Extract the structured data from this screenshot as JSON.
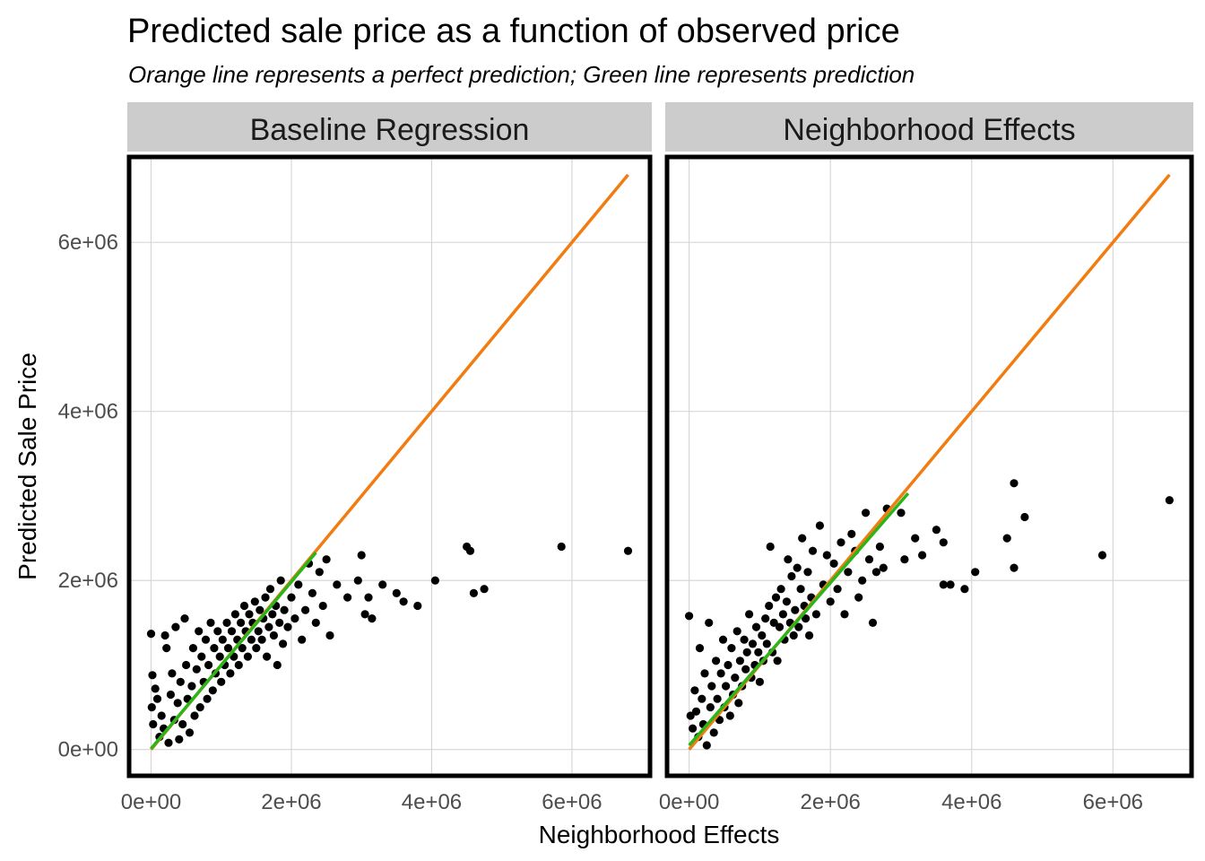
{
  "chart_data": {
    "type": "scatter",
    "title": "Predicted sale price as a function of observed price",
    "subtitle": "Orange line represents a perfect prediction; Green line represents prediction",
    "xlabel": "Neighborhood Effects",
    "ylabel": "Predicted Sale Price",
    "xlim": [
      -300000,
      7100000
    ],
    "ylim": [
      -300000,
      7000000
    ],
    "x_ticks": [
      0,
      2000000,
      4000000,
      6000000
    ],
    "x_tick_labels": [
      "0e+00",
      "2e+06",
      "4e+06",
      "6e+06"
    ],
    "y_ticks": [
      0,
      2000000,
      4000000,
      6000000
    ],
    "y_tick_labels": [
      "0e+00",
      "2e+06",
      "4e+06",
      "6e+06"
    ],
    "grid": true,
    "colors": {
      "points": "#000000",
      "perfect_line": "#f07c12",
      "prediction_line": "#2bb51a",
      "strip": "#cccccc"
    },
    "panels": [
      {
        "name": "Baseline Regression",
        "perfect_line": [
          [
            0,
            0
          ],
          [
            6800000,
            6800000
          ]
        ],
        "prediction_line": [
          [
            0,
            10000
          ],
          [
            2350000,
            2330000
          ]
        ],
        "points": [
          [
            0,
            1370000
          ],
          [
            20000,
            880000
          ],
          [
            10000,
            500000
          ],
          [
            30000,
            300000
          ],
          [
            60000,
            720000
          ],
          [
            90000,
            600000
          ],
          [
            120000,
            150000
          ],
          [
            150000,
            400000
          ],
          [
            180000,
            250000
          ],
          [
            200000,
            1350000
          ],
          [
            220000,
            1200000
          ],
          [
            250000,
            80000
          ],
          [
            280000,
            650000
          ],
          [
            300000,
            900000
          ],
          [
            330000,
            350000
          ],
          [
            350000,
            1450000
          ],
          [
            380000,
            550000
          ],
          [
            400000,
            120000
          ],
          [
            420000,
            800000
          ],
          [
            450000,
            300000
          ],
          [
            480000,
            1550000
          ],
          [
            500000,
            1000000
          ],
          [
            520000,
            600000
          ],
          [
            550000,
            200000
          ],
          [
            580000,
            750000
          ],
          [
            600000,
            1200000
          ],
          [
            620000,
            400000
          ],
          [
            650000,
            950000
          ],
          [
            680000,
            1400000
          ],
          [
            700000,
            500000
          ],
          [
            720000,
            1100000
          ],
          [
            750000,
            800000
          ],
          [
            780000,
            1300000
          ],
          [
            800000,
            600000
          ],
          [
            820000,
            1000000
          ],
          [
            850000,
            1500000
          ],
          [
            880000,
            700000
          ],
          [
            900000,
            1200000
          ],
          [
            920000,
            900000
          ],
          [
            950000,
            1400000
          ],
          [
            980000,
            1100000
          ],
          [
            1000000,
            800000
          ],
          [
            1020000,
            1300000
          ],
          [
            1050000,
            1000000
          ],
          [
            1080000,
            1500000
          ],
          [
            1100000,
            1200000
          ],
          [
            1130000,
            900000
          ],
          [
            1150000,
            1400000
          ],
          [
            1180000,
            1100000
          ],
          [
            1200000,
            1600000
          ],
          [
            1230000,
            1300000
          ],
          [
            1250000,
            1000000
          ],
          [
            1280000,
            1500000
          ],
          [
            1300000,
            1200000
          ],
          [
            1330000,
            1700000
          ],
          [
            1350000,
            1400000
          ],
          [
            1380000,
            1100000
          ],
          [
            1400000,
            1600000
          ],
          [
            1430000,
            1300000
          ],
          [
            1450000,
            1500000
          ],
          [
            1480000,
            1750000
          ],
          [
            1500000,
            1200000
          ],
          [
            1530000,
            1400000
          ],
          [
            1550000,
            1650000
          ],
          [
            1580000,
            1300000
          ],
          [
            1600000,
            1550000
          ],
          [
            1630000,
            1800000
          ],
          [
            1650000,
            1100000
          ],
          [
            1680000,
            1450000
          ],
          [
            1700000,
            1900000
          ],
          [
            1730000,
            1600000
          ],
          [
            1750000,
            1350000
          ],
          [
            1780000,
            1700000
          ],
          [
            1800000,
            1000000
          ],
          [
            1830000,
            1500000
          ],
          [
            1850000,
            2000000
          ],
          [
            1880000,
            1250000
          ],
          [
            1900000,
            1650000
          ],
          [
            1950000,
            1450000
          ],
          [
            2000000,
            1800000
          ],
          [
            2050000,
            1550000
          ],
          [
            2100000,
            1950000
          ],
          [
            2150000,
            1300000
          ],
          [
            2200000,
            1650000
          ],
          [
            2250000,
            2200000
          ],
          [
            2300000,
            1850000
          ],
          [
            2350000,
            1500000
          ],
          [
            2400000,
            2100000
          ],
          [
            2450000,
            1700000
          ],
          [
            2500000,
            2250000
          ],
          [
            2550000,
            1350000
          ],
          [
            2650000,
            1950000
          ],
          [
            2800000,
            1800000
          ],
          [
            2950000,
            2000000
          ],
          [
            3000000,
            2300000
          ],
          [
            3050000,
            1600000
          ],
          [
            3100000,
            1800000
          ],
          [
            3150000,
            1550000
          ],
          [
            3300000,
            1950000
          ],
          [
            3500000,
            1850000
          ],
          [
            3600000,
            1750000
          ],
          [
            3800000,
            1700000
          ],
          [
            4050000,
            2000000
          ],
          [
            4500000,
            2400000
          ],
          [
            4550000,
            2350000
          ],
          [
            4600000,
            1850000
          ],
          [
            4750000,
            1900000
          ],
          [
            5850000,
            2400000
          ],
          [
            6800000,
            2350000
          ]
        ]
      },
      {
        "name": "Neighborhood Effects",
        "perfect_line": [
          [
            0,
            0
          ],
          [
            6800000,
            6800000
          ]
        ],
        "prediction_line": [
          [
            0,
            50000
          ],
          [
            3100000,
            3030000
          ]
        ],
        "points": [
          [
            0,
            1580000
          ],
          [
            20000,
            400000
          ],
          [
            50000,
            250000
          ],
          [
            80000,
            700000
          ],
          [
            100000,
            450000
          ],
          [
            130000,
            150000
          ],
          [
            150000,
            1200000
          ],
          [
            180000,
            600000
          ],
          [
            200000,
            300000
          ],
          [
            220000,
            900000
          ],
          [
            250000,
            50000
          ],
          [
            280000,
            1500000
          ],
          [
            300000,
            500000
          ],
          [
            320000,
            750000
          ],
          [
            350000,
            200000
          ],
          [
            380000,
            1050000
          ],
          [
            400000,
            600000
          ],
          [
            430000,
            350000
          ],
          [
            450000,
            900000
          ],
          [
            480000,
            1300000
          ],
          [
            500000,
            500000
          ],
          [
            520000,
            750000
          ],
          [
            550000,
            1000000
          ],
          [
            580000,
            400000
          ],
          [
            600000,
            1200000
          ],
          [
            620000,
            650000
          ],
          [
            650000,
            850000
          ],
          [
            680000,
            1400000
          ],
          [
            700000,
            550000
          ],
          [
            720000,
            1050000
          ],
          [
            750000,
            750000
          ],
          [
            780000,
            1300000
          ],
          [
            800000,
            950000
          ],
          [
            820000,
            1150000
          ],
          [
            850000,
            1600000
          ],
          [
            880000,
            850000
          ],
          [
            900000,
            1250000
          ],
          [
            930000,
            1000000
          ],
          [
            950000,
            1450000
          ],
          [
            980000,
            1150000
          ],
          [
            1000000,
            800000
          ],
          [
            1030000,
            1350000
          ],
          [
            1050000,
            1050000
          ],
          [
            1080000,
            1550000
          ],
          [
            1100000,
            1250000
          ],
          [
            1130000,
            1700000
          ],
          [
            1150000,
            2400000
          ],
          [
            1180000,
            1150000
          ],
          [
            1200000,
            1500000
          ],
          [
            1230000,
            1800000
          ],
          [
            1250000,
            1050000
          ],
          [
            1280000,
            1450000
          ],
          [
            1300000,
            1900000
          ],
          [
            1330000,
            1600000
          ],
          [
            1350000,
            1300000
          ],
          [
            1380000,
            1750000
          ],
          [
            1400000,
            2250000
          ],
          [
            1430000,
            1500000
          ],
          [
            1450000,
            2050000
          ],
          [
            1480000,
            1350000
          ],
          [
            1500000,
            1650000
          ],
          [
            1530000,
            2150000
          ],
          [
            1550000,
            1450000
          ],
          [
            1580000,
            1900000
          ],
          [
            1600000,
            2500000
          ],
          [
            1630000,
            1700000
          ],
          [
            1650000,
            1550000
          ],
          [
            1680000,
            2100000
          ],
          [
            1700000,
            1350000
          ],
          [
            1730000,
            1800000
          ],
          [
            1750000,
            2350000
          ],
          [
            1800000,
            1600000
          ],
          [
            1850000,
            2650000
          ],
          [
            1900000,
            1950000
          ],
          [
            1950000,
            2300000
          ],
          [
            2000000,
            1750000
          ],
          [
            2050000,
            2200000
          ],
          [
            2100000,
            1900000
          ],
          [
            2150000,
            2450000
          ],
          [
            2200000,
            1600000
          ],
          [
            2250000,
            2100000
          ],
          [
            2300000,
            2550000
          ],
          [
            2350000,
            2350000
          ],
          [
            2400000,
            1800000
          ],
          [
            2450000,
            2000000
          ],
          [
            2500000,
            2800000
          ],
          [
            2550000,
            2250000
          ],
          [
            2600000,
            1500000
          ],
          [
            2650000,
            2100000
          ],
          [
            2700000,
            2400000
          ],
          [
            2750000,
            2150000
          ],
          [
            2800000,
            2850000
          ],
          [
            3000000,
            2800000
          ],
          [
            3050000,
            2250000
          ],
          [
            3200000,
            2500000
          ],
          [
            3300000,
            2300000
          ],
          [
            3500000,
            2600000
          ],
          [
            3600000,
            2450000
          ],
          [
            3600000,
            1950000
          ],
          [
            3700000,
            1950000
          ],
          [
            3900000,
            1900000
          ],
          [
            4050000,
            2100000
          ],
          [
            4500000,
            2500000
          ],
          [
            4600000,
            3150000
          ],
          [
            4600000,
            2150000
          ],
          [
            4750000,
            2750000
          ],
          [
            5850000,
            2300000
          ],
          [
            6800000,
            2950000
          ]
        ]
      }
    ]
  }
}
